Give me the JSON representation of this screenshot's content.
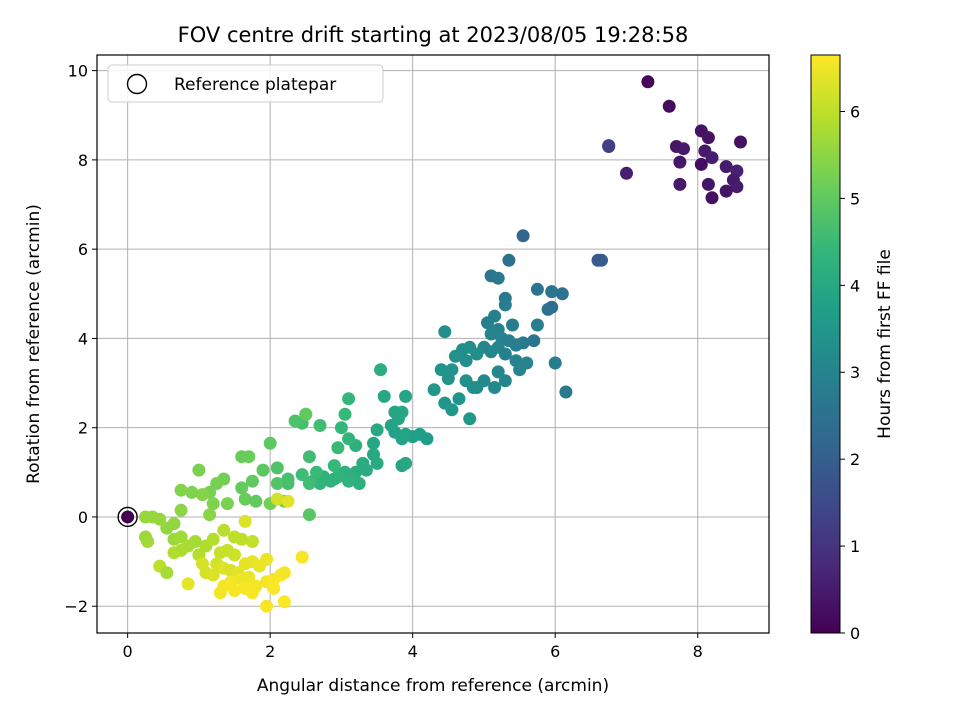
{
  "chart_data": {
    "type": "scatter",
    "title": "FOV centre drift starting at 2023/08/05 19:28:58",
    "xlabel": "Angular distance from reference (arcmin)",
    "ylabel": "Rotation from reference (arcmin)",
    "xlim": [
      -0.43,
      9.0
    ],
    "ylim": [
      -2.6,
      10.35
    ],
    "xticks": [
      0,
      2,
      4,
      6,
      8
    ],
    "yticks": [
      -2,
      0,
      2,
      4,
      6,
      8,
      10
    ],
    "grid": true,
    "legend": {
      "position": "top-left",
      "entries": [
        "Reference platepar"
      ]
    },
    "colorbar": {
      "label": "Hours from first FF file",
      "colormap": "viridis",
      "range": [
        0,
        6.65
      ],
      "ticks": [
        0,
        1,
        2,
        3,
        4,
        5,
        6
      ],
      "colors": [
        "#440154",
        "#482878",
        "#3e4989",
        "#31688e",
        "#26828e",
        "#1f9e89",
        "#35b779",
        "#6ece58",
        "#b5de2b",
        "#fde725"
      ]
    },
    "reference_point": {
      "x": 0,
      "y": 0,
      "hours": 0
    },
    "series": [
      {
        "points": [
          [
            7.3,
            9.75,
            0.1
          ],
          [
            7.6,
            9.2,
            0.2
          ],
          [
            8.05,
            8.65,
            0.3
          ],
          [
            8.15,
            8.5,
            0.35
          ],
          [
            7.7,
            8.3,
            0.4
          ],
          [
            7.8,
            8.25,
            0.45
          ],
          [
            8.1,
            8.2,
            0.5
          ],
          [
            8.2,
            8.05,
            0.55
          ],
          [
            8.6,
            8.4,
            0.3
          ],
          [
            8.05,
            7.9,
            0.25
          ],
          [
            7.75,
            7.95,
            0.4
          ],
          [
            8.4,
            7.85,
            0.5
          ],
          [
            8.55,
            7.75,
            0.6
          ],
          [
            8.5,
            7.55,
            0.45
          ],
          [
            8.55,
            7.4,
            0.5
          ],
          [
            8.4,
            7.3,
            0.35
          ],
          [
            8.15,
            7.45,
            0.4
          ],
          [
            7.75,
            7.45,
            0.45
          ],
          [
            8.2,
            7.15,
            0.3
          ],
          [
            7.0,
            7.7,
            0.55
          ],
          [
            6.75,
            8.3,
            1.15
          ],
          [
            6.75,
            8.32,
            1.3
          ],
          [
            5.55,
            6.3,
            2.2
          ],
          [
            6.65,
            5.75,
            2.0
          ],
          [
            6.6,
            5.75,
            1.9
          ],
          [
            5.1,
            5.4,
            2.6
          ],
          [
            5.2,
            5.35,
            2.7
          ],
          [
            5.35,
            5.75,
            2.5
          ],
          [
            5.75,
            5.1,
            2.5
          ],
          [
            5.95,
            5.05,
            2.6
          ],
          [
            6.1,
            5.0,
            2.5
          ],
          [
            5.95,
            4.7,
            2.4
          ],
          [
            5.9,
            4.65,
            2.45
          ],
          [
            5.3,
            4.9,
            2.7
          ],
          [
            5.3,
            4.75,
            2.8
          ],
          [
            5.15,
            4.5,
            2.9
          ],
          [
            5.05,
            4.35,
            2.9
          ],
          [
            5.4,
            4.3,
            2.8
          ],
          [
            5.55,
            3.9,
            2.7
          ],
          [
            5.7,
            3.95,
            2.6
          ],
          [
            5.75,
            4.3,
            2.8
          ],
          [
            5.2,
            4.2,
            2.9
          ],
          [
            5.1,
            4.1,
            3.0
          ],
          [
            5.25,
            4.0,
            2.95
          ],
          [
            5.35,
            3.95,
            2.9
          ],
          [
            5.45,
            3.85,
            2.85
          ],
          [
            5.2,
            3.8,
            3.0
          ],
          [
            5.0,
            3.8,
            3.05
          ],
          [
            5.1,
            3.7,
            3.1
          ],
          [
            5.3,
            3.65,
            2.9
          ],
          [
            5.45,
            3.5,
            2.95
          ],
          [
            5.6,
            3.45,
            3.0
          ],
          [
            5.5,
            3.3,
            3.0
          ],
          [
            5.2,
            3.25,
            3.1
          ],
          [
            5.3,
            3.05,
            3.1
          ],
          [
            5.0,
            3.05,
            3.2
          ],
          [
            4.9,
            2.9,
            3.2
          ],
          [
            5.15,
            2.9,
            3.15
          ],
          [
            6.0,
            3.45,
            2.8
          ],
          [
            6.15,
            2.8,
            2.7
          ],
          [
            4.8,
            3.8,
            3.3
          ],
          [
            4.7,
            3.75,
            3.3
          ],
          [
            4.6,
            3.6,
            3.35
          ],
          [
            4.9,
            3.65,
            3.25
          ],
          [
            4.75,
            3.5,
            3.3
          ],
          [
            4.55,
            3.3,
            3.4
          ],
          [
            4.4,
            3.3,
            3.45
          ],
          [
            4.5,
            3.1,
            3.4
          ],
          [
            4.75,
            3.05,
            3.35
          ],
          [
            4.85,
            2.9,
            3.3
          ],
          [
            4.3,
            2.85,
            3.5
          ],
          [
            4.65,
            2.65,
            3.45
          ],
          [
            4.45,
            2.55,
            3.5
          ],
          [
            4.55,
            2.4,
            3.55
          ],
          [
            4.8,
            2.2,
            3.5
          ],
          [
            4.45,
            4.15,
            3.3
          ],
          [
            4.0,
            1.8,
            3.7
          ],
          [
            4.1,
            1.85,
            3.75
          ],
          [
            4.2,
            1.75,
            3.7
          ],
          [
            3.9,
            1.85,
            3.8
          ],
          [
            3.85,
            1.75,
            3.85
          ],
          [
            3.75,
            1.9,
            3.8
          ],
          [
            3.7,
            2.05,
            3.85
          ],
          [
            3.8,
            2.2,
            3.9
          ],
          [
            3.85,
            2.35,
            3.95
          ],
          [
            3.75,
            2.35,
            3.9
          ],
          [
            3.9,
            2.7,
            3.9
          ],
          [
            3.6,
            2.7,
            4.0
          ],
          [
            3.55,
            3.3,
            4.15
          ],
          [
            3.5,
            1.95,
            3.95
          ],
          [
            3.45,
            1.65,
            4.0
          ],
          [
            3.45,
            1.4,
            4.0
          ],
          [
            3.5,
            1.2,
            4.05
          ],
          [
            3.3,
            1.2,
            4.1
          ],
          [
            3.35,
            1.05,
            4.1
          ],
          [
            3.2,
            1.0,
            4.15
          ],
          [
            3.05,
            1.0,
            4.2
          ],
          [
            3.15,
            0.85,
            4.2
          ],
          [
            3.25,
            0.75,
            4.2
          ],
          [
            3.1,
            0.8,
            4.25
          ],
          [
            2.95,
            0.9,
            4.25
          ],
          [
            2.9,
            0.85,
            4.3
          ],
          [
            2.85,
            0.8,
            4.3
          ],
          [
            2.7,
            0.75,
            4.35
          ],
          [
            2.6,
            0.8,
            4.35
          ],
          [
            2.75,
            0.9,
            4.3
          ],
          [
            3.2,
            1.6,
            4.2
          ],
          [
            3.1,
            1.75,
            4.35
          ],
          [
            3.0,
            2.0,
            4.4
          ],
          [
            3.05,
            2.3,
            4.45
          ],
          [
            3.1,
            2.65,
            4.4
          ],
          [
            2.7,
            2.05,
            4.6
          ],
          [
            2.5,
            2.3,
            4.7
          ],
          [
            2.45,
            2.1,
            4.65
          ],
          [
            2.35,
            2.15,
            4.75
          ],
          [
            2.95,
            1.55,
            4.5
          ],
          [
            2.9,
            1.15,
            4.45
          ],
          [
            3.85,
            1.15,
            3.9
          ],
          [
            3.9,
            1.2,
            3.95
          ],
          [
            2.55,
            1.35,
            4.6
          ],
          [
            2.65,
            1.0,
            4.5
          ],
          [
            2.45,
            0.95,
            4.55
          ],
          [
            2.55,
            0.75,
            4.6
          ],
          [
            2.25,
            0.75,
            4.65
          ],
          [
            2.1,
            1.1,
            4.8
          ],
          [
            2.0,
            1.65,
            4.95
          ],
          [
            1.9,
            1.05,
            4.95
          ],
          [
            1.75,
            0.8,
            5.0
          ],
          [
            1.6,
            0.65,
            5.05
          ],
          [
            1.65,
            0.4,
            5.1
          ],
          [
            1.8,
            0.35,
            5.0
          ],
          [
            2.0,
            0.3,
            5.2
          ],
          [
            2.2,
            0.35,
            5.15
          ],
          [
            2.1,
            0.75,
            4.85
          ],
          [
            2.55,
            0.05,
            4.9
          ],
          [
            2.25,
            0.85,
            4.7
          ],
          [
            1.6,
            1.35,
            5.1
          ],
          [
            1.7,
            1.35,
            5.1
          ],
          [
            1.35,
            0.85,
            5.2
          ],
          [
            1.25,
            0.75,
            5.25
          ],
          [
            1.15,
            0.55,
            5.25
          ],
          [
            1.0,
            1.05,
            5.3
          ],
          [
            1.2,
            0.3,
            5.35
          ],
          [
            1.05,
            0.5,
            5.4
          ],
          [
            0.9,
            0.55,
            5.35
          ],
          [
            0.75,
            0.6,
            5.4
          ],
          [
            1.4,
            0.3,
            5.3
          ],
          [
            1.15,
            0.05,
            5.45
          ],
          [
            0.75,
            0.15,
            5.5
          ],
          [
            0.65,
            -0.15,
            5.55
          ],
          [
            0.55,
            -0.25,
            5.55
          ],
          [
            0.35,
            0.0,
            5.6
          ],
          [
            0.25,
            0.0,
            5.6
          ],
          [
            0.45,
            -0.05,
            5.6
          ],
          [
            0.25,
            -0.45,
            5.65
          ],
          [
            0.28,
            -0.55,
            5.7
          ],
          [
            0.65,
            -0.5,
            5.65
          ],
          [
            0.75,
            -0.45,
            5.7
          ],
          [
            0.85,
            -0.65,
            5.8
          ],
          [
            0.95,
            -0.55,
            5.75
          ],
          [
            0.75,
            -0.75,
            5.8
          ],
          [
            0.65,
            -0.8,
            5.85
          ],
          [
            1.0,
            -0.85,
            5.9
          ],
          [
            1.1,
            -0.65,
            5.85
          ],
          [
            1.2,
            -0.5,
            5.9
          ],
          [
            1.35,
            -0.3,
            5.95
          ],
          [
            1.5,
            -0.45,
            6.0
          ],
          [
            1.6,
            -0.5,
            6.0
          ],
          [
            1.75,
            -0.55,
            6.05
          ],
          [
            1.4,
            -0.75,
            6.1
          ],
          [
            1.5,
            -0.85,
            6.15
          ],
          [
            1.3,
            -0.8,
            6.1
          ],
          [
            1.25,
            -1.05,
            6.2
          ],
          [
            1.05,
            -1.05,
            6.25
          ],
          [
            1.1,
            -1.25,
            6.25
          ],
          [
            1.2,
            -1.3,
            6.3
          ],
          [
            1.35,
            -1.15,
            6.35
          ],
          [
            1.45,
            -1.2,
            6.3
          ],
          [
            1.55,
            -1.25,
            6.35
          ],
          [
            1.65,
            -1.05,
            6.4
          ],
          [
            1.75,
            -1.0,
            6.4
          ],
          [
            1.85,
            -1.1,
            6.45
          ],
          [
            1.95,
            -0.95,
            6.45
          ],
          [
            1.7,
            -1.35,
            6.5
          ],
          [
            1.6,
            -1.4,
            6.5
          ],
          [
            1.45,
            -1.45,
            6.55
          ],
          [
            1.35,
            -1.55,
            6.55
          ],
          [
            1.5,
            -1.65,
            6.6
          ],
          [
            1.65,
            -1.6,
            6.6
          ],
          [
            1.8,
            -1.55,
            6.55
          ],
          [
            1.95,
            -1.45,
            6.55
          ],
          [
            2.05,
            -1.4,
            6.6
          ],
          [
            2.15,
            -1.3,
            6.6
          ],
          [
            2.2,
            -1.25,
            6.55
          ],
          [
            2.05,
            -1.6,
            6.62
          ],
          [
            2.2,
            -1.9,
            6.62
          ],
          [
            1.95,
            -2.0,
            6.6
          ],
          [
            1.75,
            -1.7,
            6.58
          ],
          [
            1.3,
            -1.7,
            6.55
          ],
          [
            0.85,
            -1.5,
            6.4
          ],
          [
            0.45,
            -1.1,
            6.0
          ],
          [
            0.55,
            -1.25,
            5.75
          ],
          [
            2.45,
            -0.9,
            6.6
          ],
          [
            2.1,
            0.4,
            6.2
          ],
          [
            2.25,
            0.35,
            6.35
          ],
          [
            1.65,
            -0.1,
            6.3
          ],
          [
            2.5,
            2.3,
            5.0
          ]
        ]
      }
    ]
  }
}
